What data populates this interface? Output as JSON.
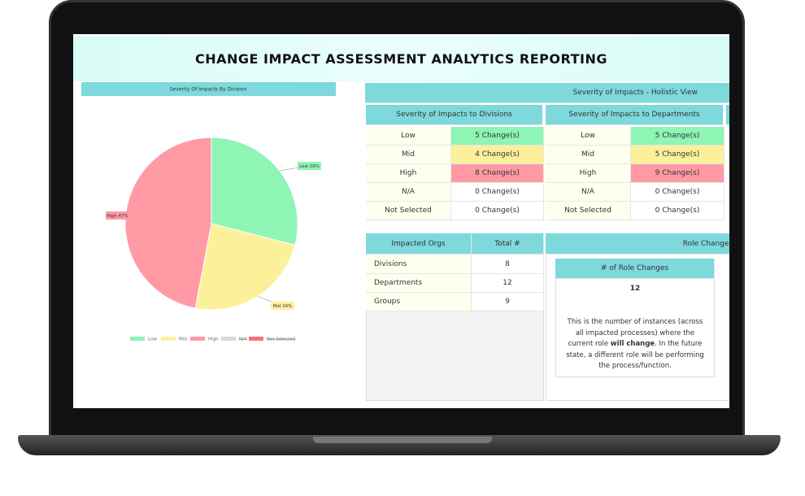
{
  "header": {
    "title": "CHANGE IMPACT ASSESSMENT ANALYTICS REPORTING"
  },
  "chart_data": {
    "type": "pie",
    "title": "Severity Of Impacts By Division",
    "categories": [
      "Low",
      "Mid",
      "High",
      "N/A",
      "Not Selected"
    ],
    "values": [
      29,
      24,
      47,
      0,
      0
    ],
    "value_labels": [
      "Low 29%",
      "Mid 24%",
      "High 47%",
      null,
      null
    ],
    "colors": [
      "#8ef5b5",
      "#fdf09a",
      "#ff9aa5",
      "#d9d9d9",
      "#f76f84"
    ],
    "hidden": [
      false,
      false,
      false,
      true,
      true
    ]
  },
  "holistic": {
    "title": "Severity of Impacts - Holistic View",
    "tables": [
      {
        "title": "Severity of Impacts to Divisions",
        "rows": [
          [
            "Low",
            "5 Change(s)"
          ],
          [
            "Mid",
            "4 Change(s)"
          ],
          [
            "High",
            "8 Change(s)"
          ],
          [
            "N/A",
            "0 Change(s)"
          ],
          [
            "Not Selected",
            "0 Change(s)"
          ]
        ]
      },
      {
        "title": "Severity of Impacts to Departments",
        "rows": [
          [
            "Low",
            "5 Change(s)"
          ],
          [
            "Mid",
            "5 Change(s)"
          ],
          [
            "High",
            "9 Change(s)"
          ],
          [
            "N/A",
            "0 Change(s)"
          ],
          [
            "Not Selected",
            "0 Change(s)"
          ]
        ]
      }
    ]
  },
  "orgs": {
    "headers": [
      "Impacted Orgs",
      "Total #"
    ],
    "rows": [
      [
        "Divisions",
        8
      ],
      [
        "Departments",
        12
      ],
      [
        "Groups",
        9
      ]
    ]
  },
  "role_changes": {
    "title": "Role Changes",
    "card_title": "# of Role Changes",
    "value": 12,
    "description": [
      "This is the number of instances (across all impacted processes) where the current role",
      "will change",
      ". In the future state, a different role will be performing the process/function."
    ]
  }
}
